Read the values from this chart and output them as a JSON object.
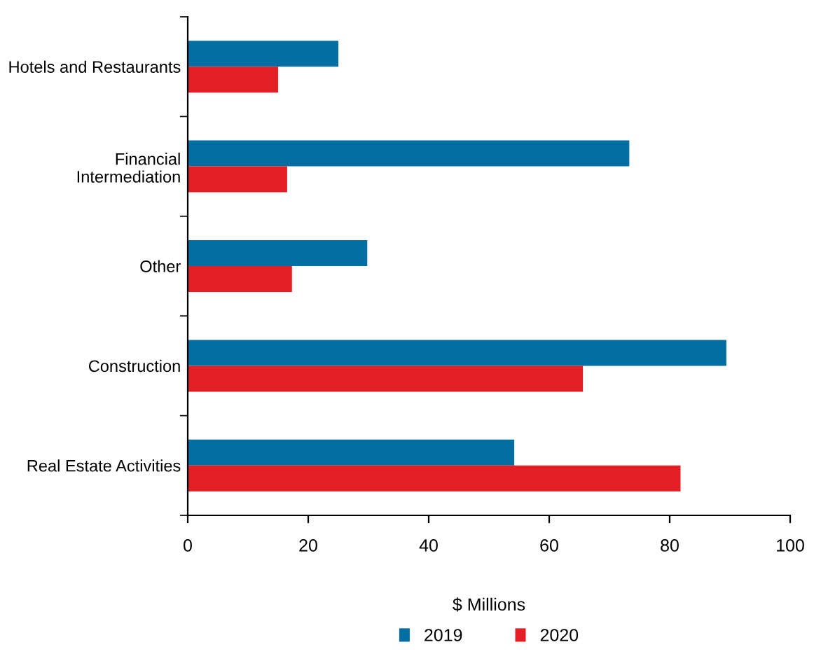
{
  "chart_data": {
    "type": "bar",
    "orientation": "horizontal",
    "xlabel": "$ Millions",
    "categories": [
      "Hotels and Restaurants",
      "Financial\nIntermediation",
      "Other",
      "Construction",
      "Real Estate Activities"
    ],
    "series": [
      {
        "name": "2019",
        "color": "#036ea2",
        "values": [
          25.0,
          73.3,
          29.8,
          89.4,
          54.2
        ]
      },
      {
        "name": "2020",
        "color": "#e31f26",
        "values": [
          15.0,
          16.5,
          17.3,
          65.6,
          81.8
        ]
      }
    ],
    "xlim": [
      0,
      100
    ],
    "xticks": [
      0,
      20,
      40,
      60,
      80,
      100
    ],
    "grid": false,
    "legend": "bottom"
  }
}
